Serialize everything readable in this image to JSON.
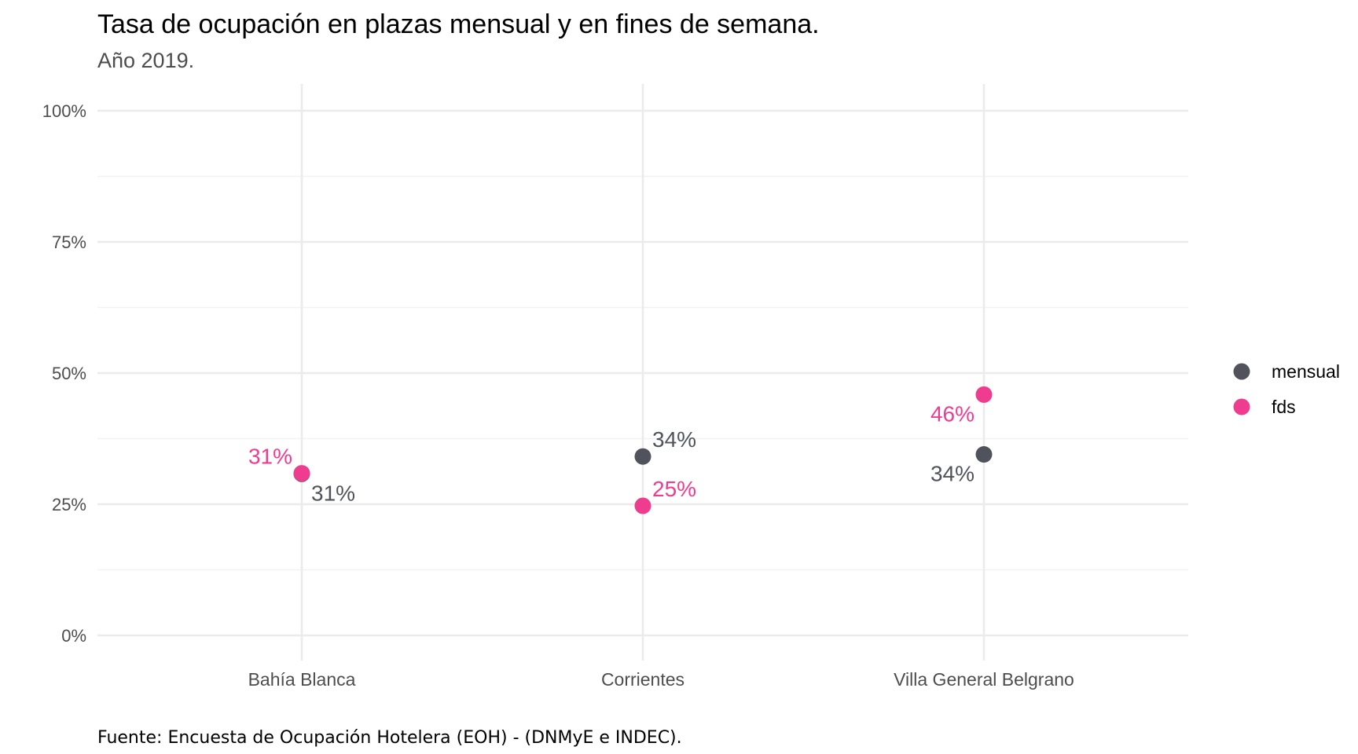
{
  "chart_data": {
    "type": "scatter",
    "title": "Tasa de ocupación en plazas mensual y en fines de semana.",
    "subtitle": "Año 2019.",
    "caption": "Fuente: Encuesta de Ocupación Hotelera (EOH) - (DNMyE e INDEC).",
    "xlabel": "",
    "ylabel": "",
    "categories": [
      "Bahía Blanca",
      "Corrientes",
      "Villa General Belgrano"
    ],
    "ylim": [
      0,
      1
    ],
    "yticks": [
      0,
      0.25,
      0.5,
      0.75,
      1
    ],
    "ytick_labels": [
      "0%",
      "25%",
      "50%",
      "75%",
      "100%"
    ],
    "grid": true,
    "legend_position": "right",
    "series": [
      {
        "name": "mensual",
        "color": "#50535c",
        "values": [
          0.308,
          0.341,
          0.345
        ],
        "labels": [
          "31%",
          "34%",
          "34%"
        ],
        "label_side": [
          "below-right",
          "above-right",
          "below-left"
        ]
      },
      {
        "name": "fds",
        "color": "#ee3d8f",
        "values": [
          0.309,
          0.247,
          0.459
        ],
        "labels": [
          "31%",
          "25%",
          "46%"
        ],
        "label_side": [
          "above-left",
          "above-right",
          "below-left"
        ]
      }
    ]
  }
}
